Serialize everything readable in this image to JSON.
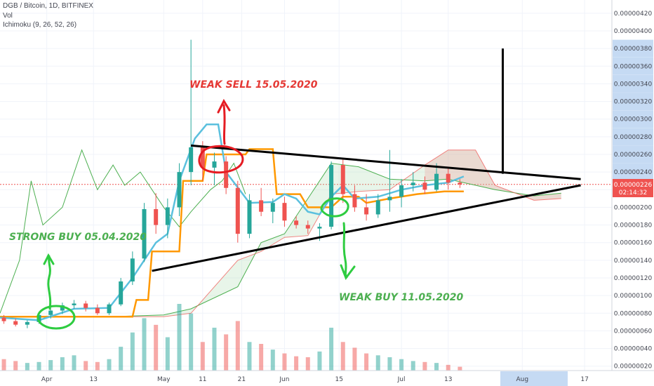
{
  "header": {
    "symbol": "DGB / Bitcoin, 1D, BITFINEX",
    "vol_label": "Vol",
    "ichimoku_label": "Ichimoku (9, 26, 52, 26)"
  },
  "price_axis": {
    "labels": [
      "0.00000420",
      "0.00000400",
      "0.00000380",
      "0.00000360",
      "0.00000340",
      "0.00000320",
      "0.00000300",
      "0.00000280",
      "0.00000260",
      "0.00000240",
      "0.00000220",
      "0.00000200",
      "0.00000180",
      "0.00000160",
      "0.00000140",
      "0.00000120",
      "0.00000100",
      "0.00000080",
      "0.00000060",
      "0.00000040",
      "0.00000020"
    ],
    "highlighted": [
      "0.00000380",
      "0.00000360",
      "0.00000340",
      "0.00000320",
      "0.00000300",
      "0.00000280",
      "0.00000260",
      "0.00000240"
    ],
    "last_price": "0.00000226",
    "countdown": "02:14:32"
  },
  "time_axis": {
    "labels": [
      "Apr",
      "13",
      "May",
      "11",
      "21",
      "Jun",
      "15",
      "Jul",
      "13",
      "Aug",
      "17"
    ]
  },
  "annotations": {
    "strong_buy": "STRONG BUY 05.04.2020",
    "weak_sell": "WEAK SELL 15.05.2020",
    "weak_buy": "WEAK BUY 11.05.2020"
  },
  "colors": {
    "up": "#26a69a",
    "down": "#ef5350",
    "conversion_line": "#5bc0de",
    "base_line": "#ff9800",
    "lagging_span": "#4caf50",
    "cloud_bull": "#a5d6a7",
    "cloud_bear": "#ef9a9a",
    "sell_annotation": "#e53935",
    "buy_annotation": "#43a047",
    "last_price_badge": "#ef5350",
    "axis_highlight": "#c5daf3"
  },
  "chart_data": {
    "type": "candlestick",
    "title": "DGB / Bitcoin, 1D, BITFINEX",
    "ylim": [
      1.5e-07,
      4.35e-06
    ],
    "x_range": [
      "2020-03-20",
      "2020-08-24"
    ],
    "last_price": 2.26e-06,
    "ohlc": [
      {
        "x": "2020-03-21",
        "o": 7.5e-07,
        "h": 7.8e-07,
        "l": 6.8e-07,
        "c": 7.1e-07
      },
      {
        "x": "2020-03-24",
        "o": 7.1e-07,
        "h": 7.4e-07,
        "l": 6.5e-07,
        "c": 6.7e-07
      },
      {
        "x": "2020-03-27",
        "o": 6.7e-07,
        "h": 7.2e-07,
        "l": 6.3e-07,
        "c": 7e-07
      },
      {
        "x": "2020-03-30",
        "o": 7e-07,
        "h": 8e-07,
        "l": 6.8e-07,
        "c": 7.8e-07
      },
      {
        "x": "2020-04-02",
        "o": 7.8e-07,
        "h": 8.6e-07,
        "l": 7.4e-07,
        "c": 8.3e-07
      },
      {
        "x": "2020-04-05",
        "o": 8.3e-07,
        "h": 9.2e-07,
        "l": 7.9e-07,
        "c": 8.9e-07
      },
      {
        "x": "2020-04-08",
        "o": 8.9e-07,
        "h": 9.5e-07,
        "l": 8.5e-07,
        "c": 9.1e-07
      },
      {
        "x": "2020-04-11",
        "o": 9.1e-07,
        "h": 9.4e-07,
        "l": 8.2e-07,
        "c": 8.6e-07
      },
      {
        "x": "2020-04-14",
        "o": 8.6e-07,
        "h": 9e-07,
        "l": 7.8e-07,
        "c": 8e-07
      },
      {
        "x": "2020-04-17",
        "o": 8e-07,
        "h": 9.2e-07,
        "l": 7.8e-07,
        "c": 9e-07
      },
      {
        "x": "2020-04-20",
        "o": 9e-07,
        "h": 1.2e-06,
        "l": 8.8e-07,
        "c": 1.16e-06
      },
      {
        "x": "2020-04-23",
        "o": 1.16e-06,
        "h": 1.5e-06,
        "l": 1.12e-06,
        "c": 1.42e-06
      },
      {
        "x": "2020-04-26",
        "o": 1.42e-06,
        "h": 2.05e-06,
        "l": 1.38e-06,
        "c": 1.98e-06
      },
      {
        "x": "2020-04-29",
        "o": 1.98e-06,
        "h": 2.16e-06,
        "l": 1.7e-06,
        "c": 1.8e-06
      },
      {
        "x": "2020-05-02",
        "o": 1.8e-06,
        "h": 2.1e-06,
        "l": 1.65e-06,
        "c": 2e-06
      },
      {
        "x": "2020-05-05",
        "o": 2e-06,
        "h": 2.5e-06,
        "l": 1.9e-06,
        "c": 2.4e-06
      },
      {
        "x": "2020-05-08",
        "o": 2.4e-06,
        "h": 3.9e-06,
        "l": 2.25e-06,
        "c": 2.68e-06
      },
      {
        "x": "2020-05-11",
        "o": 2.68e-06,
        "h": 2.75e-06,
        "l": 2.3e-06,
        "c": 2.45e-06
      },
      {
        "x": "2020-05-14",
        "o": 2.45e-06,
        "h": 2.62e-06,
        "l": 2.25e-06,
        "c": 2.52e-06
      },
      {
        "x": "2020-05-17",
        "o": 2.52e-06,
        "h": 2.58e-06,
        "l": 2.15e-06,
        "c": 2.22e-06
      },
      {
        "x": "2020-05-20",
        "o": 2.22e-06,
        "h": 2.3e-06,
        "l": 1.6e-06,
        "c": 1.7e-06
      },
      {
        "x": "2020-05-23",
        "o": 1.7e-06,
        "h": 2.15e-06,
        "l": 1.65e-06,
        "c": 2.08e-06
      },
      {
        "x": "2020-05-26",
        "o": 2.08e-06,
        "h": 2.22e-06,
        "l": 1.9e-06,
        "c": 1.95e-06
      },
      {
        "x": "2020-05-29",
        "o": 1.95e-06,
        "h": 2.1e-06,
        "l": 1.82e-06,
        "c": 2.05e-06
      },
      {
        "x": "2020-06-01",
        "o": 2.05e-06,
        "h": 2.12e-06,
        "l": 1.78e-06,
        "c": 1.85e-06
      },
      {
        "x": "2020-06-04",
        "o": 1.85e-06,
        "h": 1.9e-06,
        "l": 1.76e-06,
        "c": 1.8e-06
      },
      {
        "x": "2020-06-07",
        "o": 1.8e-06,
        "h": 1.85e-06,
        "l": 1.7e-06,
        "c": 1.76e-06
      },
      {
        "x": "2020-06-10",
        "o": 1.76e-06,
        "h": 1.82e-06,
        "l": 1.62e-06,
        "c": 1.78e-06
      },
      {
        "x": "2020-06-13",
        "o": 1.78e-06,
        "h": 2.52e-06,
        "l": 1.75e-06,
        "c": 2.48e-06
      },
      {
        "x": "2020-06-16",
        "o": 2.48e-06,
        "h": 2.54e-06,
        "l": 2.05e-06,
        "c": 2.15e-06
      },
      {
        "x": "2020-06-19",
        "o": 2.15e-06,
        "h": 2.25e-06,
        "l": 1.95e-06,
        "c": 2e-06
      },
      {
        "x": "2020-06-22",
        "o": 2e-06,
        "h": 2.15e-06,
        "l": 1.85e-06,
        "c": 1.92e-06
      },
      {
        "x": "2020-06-25",
        "o": 1.92e-06,
        "h": 2.15e-06,
        "l": 1.88e-06,
        "c": 2.08e-06
      },
      {
        "x": "2020-06-28",
        "o": 2.08e-06,
        "h": 2.65e-06,
        "l": 1.95e-06,
        "c": 2.12e-06
      },
      {
        "x": "2020-07-01",
        "o": 2.12e-06,
        "h": 2.32e-06,
        "l": 2e-06,
        "c": 2.25e-06
      },
      {
        "x": "2020-07-04",
        "o": 2.25e-06,
        "h": 2.4e-06,
        "l": 2.18e-06,
        "c": 2.28e-06
      },
      {
        "x": "2020-07-07",
        "o": 2.28e-06,
        "h": 2.35e-06,
        "l": 2.15e-06,
        "c": 2.2e-06
      },
      {
        "x": "2020-07-10",
        "o": 2.2e-06,
        "h": 2.5e-06,
        "l": 2.18e-06,
        "c": 2.38e-06
      },
      {
        "x": "2020-07-13",
        "o": 2.38e-06,
        "h": 2.45e-06,
        "l": 2.2e-06,
        "c": 2.28e-06
      },
      {
        "x": "2020-07-16",
        "o": 2.28e-06,
        "h": 2.32e-06,
        "l": 2.22e-06,
        "c": 2.26e-06
      }
    ],
    "volume": [
      12,
      10,
      8,
      9,
      11,
      14,
      16,
      10,
      9,
      12,
      25,
      40,
      55,
      48,
      35,
      70,
      60,
      30,
      45,
      38,
      52,
      30,
      28,
      22,
      18,
      15,
      14,
      20,
      45,
      30,
      24,
      18,
      16,
      14,
      12,
      10,
      9,
      8,
      6,
      4
    ],
    "conversion_line": [
      {
        "x": "2020-03-20",
        "y": 7.5e-07
      },
      {
        "x": "2020-03-30",
        "y": 7.2e-07
      },
      {
        "x": "2020-04-08",
        "y": 8.5e-07
      },
      {
        "x": "2020-04-17",
        "y": 8.6e-07
      },
      {
        "x": "2020-04-23",
        "y": 1.2e-06
      },
      {
        "x": "2020-04-29",
        "y": 1.6e-06
      },
      {
        "x": "2020-05-02",
        "y": 1.7e-06
      },
      {
        "x": "2020-05-05",
        "y": 2.3e-06
      },
      {
        "x": "2020-05-09",
        "y": 2.78e-06
      },
      {
        "x": "2020-05-12",
        "y": 2.94e-06
      },
      {
        "x": "2020-05-15",
        "y": 2.94e-06
      },
      {
        "x": "2020-05-17",
        "y": 2.4e-06
      },
      {
        "x": "2020-05-23",
        "y": 2.05e-06
      },
      {
        "x": "2020-05-29",
        "y": 2.06e-06
      },
      {
        "x": "2020-06-01",
        "y": 2.15e-06
      },
      {
        "x": "2020-06-04",
        "y": 2.1e-06
      },
      {
        "x": "2020-06-07",
        "y": 1.95e-06
      },
      {
        "x": "2020-06-10",
        "y": 1.92e-06
      },
      {
        "x": "2020-06-13",
        "y": 2.12e-06
      },
      {
        "x": "2020-06-16",
        "y": 2.25e-06
      },
      {
        "x": "2020-06-19",
        "y": 2.1e-06
      },
      {
        "x": "2020-06-25",
        "y": 2.12e-06
      },
      {
        "x": "2020-07-01",
        "y": 2.2e-06
      },
      {
        "x": "2020-07-07",
        "y": 2.25e-06
      },
      {
        "x": "2020-07-13",
        "y": 2.28e-06
      },
      {
        "x": "2020-07-17",
        "y": 2.35e-06
      }
    ],
    "base_line": [
      {
        "x": "2020-03-20",
        "y": 7.6e-07
      },
      {
        "x": "2020-04-23",
        "y": 7.6e-07
      },
      {
        "x": "2020-04-24",
        "y": 9.5e-07
      },
      {
        "x": "2020-04-27",
        "y": 9.5e-07
      },
      {
        "x": "2020-04-28",
        "y": 1.5e-06
      },
      {
        "x": "2020-05-05",
        "y": 1.5e-06
      },
      {
        "x": "2020-05-06",
        "y": 2.3e-06
      },
      {
        "x": "2020-05-11",
        "y": 2.3e-06
      },
      {
        "x": "2020-05-12",
        "y": 2.6e-06
      },
      {
        "x": "2020-05-22",
        "y": 2.6e-06
      },
      {
        "x": "2020-05-23",
        "y": 2.66e-06
      },
      {
        "x": "2020-05-29",
        "y": 2.66e-06
      },
      {
        "x": "2020-05-30",
        "y": 2.15e-06
      },
      {
        "x": "2020-06-05",
        "y": 2.15e-06
      },
      {
        "x": "2020-06-07",
        "y": 2e-06
      },
      {
        "x": "2020-06-13",
        "y": 2e-06
      },
      {
        "x": "2020-06-16",
        "y": 2.12e-06
      },
      {
        "x": "2020-06-20",
        "y": 2.12e-06
      },
      {
        "x": "2020-06-22",
        "y": 2.05e-06
      },
      {
        "x": "2020-06-28",
        "y": 2.1e-06
      },
      {
        "x": "2020-07-05",
        "y": 2.15e-06
      },
      {
        "x": "2020-07-12",
        "y": 2.18e-06
      },
      {
        "x": "2020-07-17",
        "y": 2.18e-06
      }
    ],
    "lagging_span": [
      {
        "x": "2020-03-20",
        "y": 8e-07
      },
      {
        "x": "2020-03-25",
        "y": 1.4e-06
      },
      {
        "x": "2020-03-28",
        "y": 2.3e-06
      },
      {
        "x": "2020-03-31",
        "y": 1.8e-06
      },
      {
        "x": "2020-04-05",
        "y": 2e-06
      },
      {
        "x": "2020-04-10",
        "y": 2.65e-06
      },
      {
        "x": "2020-04-14",
        "y": 2.2e-06
      },
      {
        "x": "2020-04-18",
        "y": 2.48e-06
      },
      {
        "x": "2020-04-21",
        "y": 2.25e-06
      },
      {
        "x": "2020-04-25",
        "y": 2.4e-06
      },
      {
        "x": "2020-05-01",
        "y": 2e-06
      },
      {
        "x": "2020-05-05",
        "y": 1.78e-06
      },
      {
        "x": "2020-05-08",
        "y": 1.95e-06
      },
      {
        "x": "2020-05-13",
        "y": 2.2e-06
      },
      {
        "x": "2020-05-16",
        "y": 2.3e-06
      },
      {
        "x": "2020-05-19",
        "y": 2.5e-06
      },
      {
        "x": "2020-05-22",
        "y": 2.15e-06
      }
    ],
    "senkou_a": [
      {
        "x": "2020-04-17",
        "y": 7.6e-07
      },
      {
        "x": "2020-05-01",
        "y": 7.8e-07
      },
      {
        "x": "2020-05-08",
        "y": 8.5e-07
      },
      {
        "x": "2020-05-20",
        "y": 1.1e-06
      },
      {
        "x": "2020-05-26",
        "y": 1.6e-06
      },
      {
        "x": "2020-06-01",
        "y": 1.7e-06
      },
      {
        "x": "2020-06-07",
        "y": 2.1e-06
      },
      {
        "x": "2020-06-13",
        "y": 2.5e-06
      },
      {
        "x": "2020-06-20",
        "y": 2.46e-06
      },
      {
        "x": "2020-06-28",
        "y": 2.32e-06
      },
      {
        "x": "2020-07-07",
        "y": 2.3e-06
      },
      {
        "x": "2020-07-13",
        "y": 2.32e-06
      },
      {
        "x": "2020-07-25",
        "y": 2.2e-06
      },
      {
        "x": "2020-08-04",
        "y": 2.13e-06
      },
      {
        "x": "2020-08-11",
        "y": 2.16e-06
      }
    ],
    "senkou_b": [
      {
        "x": "2020-04-17",
        "y": 7.6e-07
      },
      {
        "x": "2020-05-01",
        "y": 7.6e-07
      },
      {
        "x": "2020-05-08",
        "y": 8e-07
      },
      {
        "x": "2020-05-20",
        "y": 1.4e-06
      },
      {
        "x": "2020-05-26",
        "y": 1.5e-06
      },
      {
        "x": "2020-06-01",
        "y": 1.66e-06
      },
      {
        "x": "2020-06-07",
        "y": 1.68e-06
      },
      {
        "x": "2020-06-13",
        "y": 2.15e-06
      },
      {
        "x": "2020-06-20",
        "y": 2.18e-06
      },
      {
        "x": "2020-06-28",
        "y": 2.2e-06
      },
      {
        "x": "2020-07-07",
        "y": 2.48e-06
      },
      {
        "x": "2020-07-13",
        "y": 2.65e-06
      },
      {
        "x": "2020-07-20",
        "y": 2.65e-06
      },
      {
        "x": "2020-07-25",
        "y": 2.25e-06
      },
      {
        "x": "2020-08-04",
        "y": 2.08e-06
      },
      {
        "x": "2020-08-11",
        "y": 2.1e-06
      }
    ],
    "trendlines": [
      {
        "name": "upper",
        "from": {
          "x": "2020-05-08",
          "y": 2.7e-06
        },
        "to": {
          "x": "2020-08-16",
          "y": 2.32e-06
        }
      },
      {
        "name": "lower",
        "from": {
          "x": "2020-04-28",
          "y": 1.28e-06
        },
        "to": {
          "x": "2020-08-16",
          "y": 2.25e-06
        }
      },
      {
        "name": "vertical",
        "from": {
          "x": "2020-07-27",
          "y": 2.38e-06
        },
        "to": {
          "x": "2020-07-27",
          "y": 3.8e-06
        }
      }
    ]
  }
}
